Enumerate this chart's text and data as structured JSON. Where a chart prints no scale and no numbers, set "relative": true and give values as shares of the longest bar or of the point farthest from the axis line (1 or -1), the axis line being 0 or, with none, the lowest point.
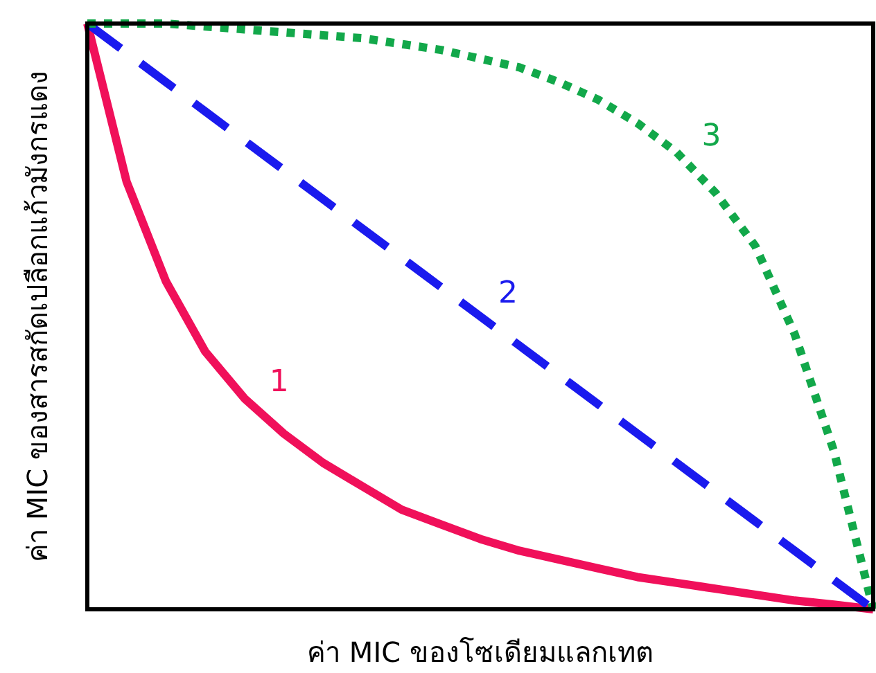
{
  "chart_data": {
    "type": "line",
    "relative": true,
    "xlabel": "ค่า MIC ของโซเดียมแลกเทต",
    "ylabel": "ค่า MIC ของสารสกัดเปลือกแก้วมังกรแดง",
    "categories": [
      null,
      null,
      null,
      null,
      null,
      null,
      null,
      null,
      null,
      null,
      null,
      null,
      null,
      null,
      null,
      null,
      null,
      null,
      null,
      null,
      null
    ],
    "series": [
      {
        "name": "1",
        "color": "#f0105a",
        "line_style": "solid",
        "values": [
          1,
          0.73,
          0.56,
          0.44,
          0.36,
          0.3,
          0.25,
          0.21,
          0.17,
          0.145,
          0.12,
          0.1,
          0.085,
          0.07,
          0.055,
          0.045,
          0.035,
          0.025,
          0.015,
          0.008,
          0
        ]
      },
      {
        "name": "2",
        "color": "#1a1aee",
        "line_style": "dashed",
        "values": [
          1,
          0.95,
          0.9,
          0.85,
          0.8,
          0.75,
          0.7,
          0.65,
          0.6,
          0.55,
          0.5,
          0.45,
          0.4,
          0.35,
          0.3,
          0.25,
          0.2,
          0.15,
          0.1,
          0.05,
          0
        ]
      },
      {
        "name": "3",
        "color": "#12a84a",
        "line_style": "dotted",
        "values": [
          1,
          1,
          1,
          0.995,
          0.99,
          0.985,
          0.98,
          0.975,
          0.965,
          0.955,
          0.94,
          0.925,
          0.9,
          0.87,
          0.83,
          0.78,
          0.71,
          0.62,
          0.47,
          0.27,
          0
        ]
      }
    ]
  }
}
